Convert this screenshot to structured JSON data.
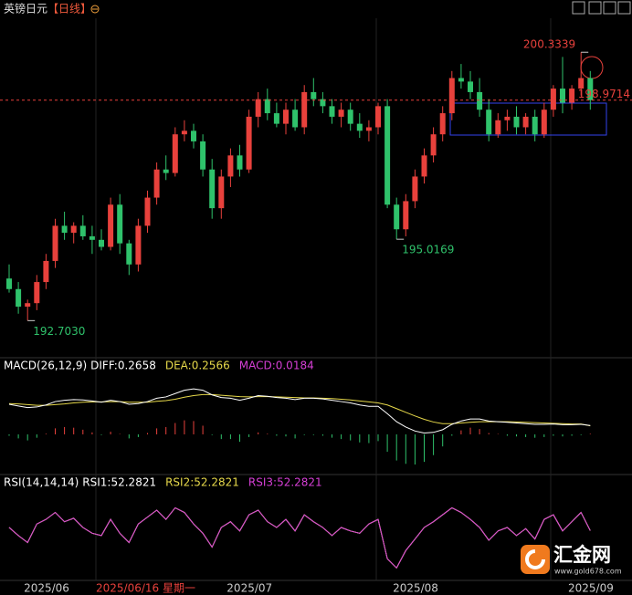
{
  "chart_data": [
    {
      "type": "candlestick",
      "title": "英镑日元",
      "subtitle": "【日线】",
      "up_color": "#e8413c",
      "down_color": "#2fc26b",
      "ylim": [
        191.7,
        201.3
      ],
      "categories": [
        null,
        "2025/06",
        null,
        null,
        null,
        null,
        null,
        null,
        null,
        null,
        null,
        null,
        null,
        null,
        null,
        null,
        null,
        null,
        null,
        null,
        null,
        null,
        null,
        "2025/07",
        null,
        null,
        null,
        null,
        null,
        null,
        null,
        null,
        null,
        null,
        null,
        null,
        null,
        null,
        null,
        null,
        null,
        "2025/08",
        null,
        null,
        null,
        null,
        null,
        null,
        null,
        null,
        null,
        null,
        null,
        null,
        null,
        null,
        null,
        null,
        null,
        null,
        "2025/09",
        null,
        null,
        null
      ],
      "open": [
        193.9,
        193.6,
        193.1,
        193.2,
        193.8,
        194.4,
        195.4,
        195.2,
        195.4,
        195.1,
        195.0,
        194.8,
        196.0,
        194.9,
        194.3,
        195.4,
        196.2,
        197.0,
        196.9,
        198.0,
        198.1,
        197.8,
        197.0,
        195.9,
        196.8,
        197.4,
        197.0,
        198.5,
        199.0,
        198.6,
        198.3,
        198.7,
        198.2,
        199.2,
        199.0,
        198.8,
        198.5,
        198.7,
        198.3,
        198.1,
        198.2,
        198.8,
        196.0,
        195.3,
        196.1,
        196.8,
        197.4,
        198.0,
        198.6,
        199.6,
        199.5,
        199.2,
        198.7,
        198.0,
        198.4,
        198.5,
        198.2,
        198.5,
        198.0,
        198.7,
        199.3,
        198.9,
        199.3,
        199.6
      ],
      "high": [
        194.3,
        193.8,
        193.3,
        194.0,
        194.6,
        195.6,
        195.8,
        195.5,
        195.7,
        195.4,
        195.3,
        196.2,
        196.3,
        195.0,
        195.6,
        196.4,
        197.2,
        197.4,
        198.2,
        198.4,
        198.3,
        198.0,
        197.3,
        197.0,
        197.6,
        197.7,
        198.7,
        199.2,
        199.3,
        198.9,
        198.9,
        199.0,
        199.4,
        199.6,
        199.2,
        199.0,
        198.9,
        198.9,
        198.6,
        198.4,
        198.9,
        199.0,
        196.2,
        196.3,
        197.0,
        197.6,
        198.2,
        198.8,
        199.8,
        200.0,
        199.8,
        199.6,
        199.0,
        198.6,
        198.7,
        198.8,
        198.6,
        198.7,
        198.9,
        199.4,
        200.2,
        199.4,
        200.3339,
        199.8
      ],
      "low": [
        193.5,
        192.9,
        192.703,
        193.0,
        193.6,
        194.2,
        195.0,
        194.9,
        195.0,
        194.6,
        194.7,
        194.7,
        194.6,
        194.0,
        194.1,
        195.2,
        196.0,
        196.7,
        196.8,
        197.8,
        197.6,
        196.8,
        195.6,
        195.6,
        196.5,
        196.8,
        196.9,
        198.2,
        198.4,
        198.2,
        198.0,
        198.1,
        198.0,
        198.8,
        198.6,
        198.3,
        198.2,
        198.1,
        197.9,
        197.8,
        198.0,
        195.9,
        195.0169,
        195.1,
        195.9,
        196.6,
        197.2,
        197.8,
        198.4,
        199.3,
        199.0,
        198.5,
        197.8,
        197.9,
        198.1,
        198.0,
        198.0,
        197.8,
        197.9,
        198.5,
        198.6,
        198.7,
        199.1,
        198.7
      ],
      "close": [
        193.6,
        193.1,
        193.2,
        193.8,
        194.4,
        195.4,
        195.2,
        195.4,
        195.1,
        195.0,
        194.8,
        196.0,
        194.9,
        194.3,
        195.4,
        196.2,
        197.0,
        196.9,
        198.0,
        198.1,
        197.8,
        197.0,
        195.9,
        196.8,
        197.4,
        197.0,
        198.5,
        199.0,
        198.6,
        198.3,
        198.7,
        198.2,
        199.2,
        199.0,
        198.8,
        198.5,
        198.7,
        198.3,
        198.1,
        198.2,
        198.8,
        196.0,
        195.3,
        196.1,
        196.8,
        197.4,
        198.0,
        198.6,
        199.6,
        199.5,
        199.2,
        198.7,
        198.0,
        198.4,
        198.5,
        198.2,
        198.5,
        198.0,
        198.7,
        199.3,
        198.9,
        199.3,
        199.6,
        198.9714
      ],
      "annotations": [
        {
          "value": 200.3339,
          "label": "200.3339",
          "color": "#e8413c"
        },
        {
          "value": 195.0169,
          "label": "195.0169",
          "color": "#2fc26b"
        },
        {
          "value": 192.703,
          "label": "192.7030",
          "color": "#2fc26b"
        }
      ],
      "last_price": {
        "value": 198.9714,
        "label": "198.9714",
        "color": "#e8413c"
      },
      "crosshair_label": "2025/06/16 星期一"
    },
    {
      "type": "macd",
      "title": "MACD(26,12,9)",
      "ylim": [
        -1.2,
        1.8
      ],
      "series": [
        {
          "name": "DIFF:",
          "color": "#ffffff",
          "values": [
            0.9,
            0.85,
            0.8,
            0.82,
            0.88,
            0.98,
            1.02,
            1.04,
            1.03,
            1.0,
            0.96,
            1.02,
            0.98,
            0.9,
            0.92,
            0.98,
            1.08,
            1.12,
            1.22,
            1.32,
            1.36,
            1.32,
            1.18,
            1.1,
            1.08,
            1.02,
            1.08,
            1.16,
            1.14,
            1.1,
            1.08,
            1.04,
            1.08,
            1.08,
            1.06,
            1.02,
            0.98,
            0.94,
            0.88,
            0.84,
            0.84,
            0.62,
            0.38,
            0.22,
            0.1,
            0.04,
            0.06,
            0.14,
            0.3,
            0.4,
            0.46,
            0.46,
            0.4,
            0.38,
            0.36,
            0.34,
            0.32,
            0.3,
            0.3,
            0.31,
            0.29,
            0.29,
            0.3,
            0.2658
          ]
        },
        {
          "name": "DEA:",
          "color": "#e6d84a",
          "values": [
            0.92,
            0.91,
            0.89,
            0.87,
            0.87,
            0.89,
            0.91,
            0.94,
            0.96,
            0.97,
            0.97,
            0.98,
            0.98,
            0.96,
            0.96,
            0.96,
            0.99,
            1.01,
            1.05,
            1.11,
            1.16,
            1.19,
            1.19,
            1.17,
            1.15,
            1.13,
            1.12,
            1.13,
            1.13,
            1.12,
            1.11,
            1.1,
            1.09,
            1.09,
            1.08,
            1.07,
            1.05,
            1.03,
            1.0,
            0.97,
            0.94,
            0.88,
            0.77,
            0.66,
            0.55,
            0.45,
            0.37,
            0.32,
            0.32,
            0.34,
            0.36,
            0.38,
            0.38,
            0.38,
            0.38,
            0.37,
            0.36,
            0.35,
            0.34,
            0.33,
            0.32,
            0.31,
            0.31,
            0.2566
          ]
        },
        {
          "name": "MACD:",
          "color": "#d63fd6",
          "up_color": "#e8413c",
          "down_color": "#2fc26b",
          "values": [
            -0.04,
            -0.12,
            -0.18,
            -0.1,
            0.02,
            0.18,
            0.22,
            0.2,
            0.14,
            0.06,
            -0.02,
            0.08,
            0.0,
            -0.12,
            -0.08,
            0.04,
            0.18,
            0.22,
            0.34,
            0.42,
            0.4,
            0.26,
            -0.02,
            -0.14,
            -0.14,
            -0.22,
            -0.08,
            0.06,
            0.02,
            -0.04,
            -0.06,
            -0.12,
            -0.02,
            -0.02,
            -0.04,
            -0.1,
            -0.14,
            -0.18,
            -0.24,
            -0.26,
            -0.2,
            -0.52,
            -0.78,
            -0.88,
            -0.9,
            -0.82,
            -0.62,
            -0.36,
            -0.04,
            0.12,
            0.2,
            0.16,
            0.04,
            0.0,
            -0.04,
            -0.06,
            -0.08,
            -0.1,
            -0.08,
            -0.04,
            -0.06,
            -0.04,
            -0.02,
            0.0184
          ]
        }
      ]
    },
    {
      "type": "rsi",
      "title": "RSI(14,14,14)",
      "ylim": [
        10,
        85
      ],
      "series": [
        {
          "name": "RSI1:",
          "color": "#ffffff",
          "values": [
            55,
            48,
            42,
            58,
            62,
            68,
            60,
            63,
            55,
            50,
            48,
            62,
            50,
            42,
            58,
            64,
            70,
            62,
            72,
            68,
            58,
            50,
            38,
            55,
            60,
            52,
            66,
            70,
            60,
            55,
            62,
            52,
            66,
            60,
            55,
            48,
            55,
            52,
            50,
            58,
            62,
            28,
            20,
            35,
            45,
            55,
            60,
            66,
            72,
            68,
            62,
            55,
            44,
            52,
            55,
            48,
            54,
            45,
            62,
            66,
            52,
            60,
            68,
            52.2821
          ]
        },
        {
          "name": "RSI2:",
          "color": "#e6d84a",
          "values": [
            55,
            48,
            42,
            58,
            62,
            68,
            60,
            63,
            55,
            50,
            48,
            62,
            50,
            42,
            58,
            64,
            70,
            62,
            72,
            68,
            58,
            50,
            38,
            55,
            60,
            52,
            66,
            70,
            60,
            55,
            62,
            52,
            66,
            60,
            55,
            48,
            55,
            52,
            50,
            58,
            62,
            28,
            20,
            35,
            45,
            55,
            60,
            66,
            72,
            68,
            62,
            55,
            44,
            52,
            55,
            48,
            54,
            45,
            62,
            66,
            52,
            60,
            68,
            52.2821
          ]
        },
        {
          "name": "RSI3:",
          "color": "#d63fd6",
          "values": [
            55,
            48,
            42,
            58,
            62,
            68,
            60,
            63,
            55,
            50,
            48,
            62,
            50,
            42,
            58,
            64,
            70,
            62,
            72,
            68,
            58,
            50,
            38,
            55,
            60,
            52,
            66,
            70,
            60,
            55,
            62,
            52,
            66,
            60,
            55,
            48,
            55,
            52,
            50,
            58,
            62,
            28,
            20,
            35,
            45,
            55,
            60,
            66,
            72,
            68,
            62,
            55,
            44,
            52,
            55,
            48,
            54,
            45,
            62,
            66,
            52,
            60,
            68,
            52.2821
          ]
        }
      ]
    }
  ],
  "watermark": {
    "name": "汇金网",
    "url": "www.gold678.com"
  }
}
